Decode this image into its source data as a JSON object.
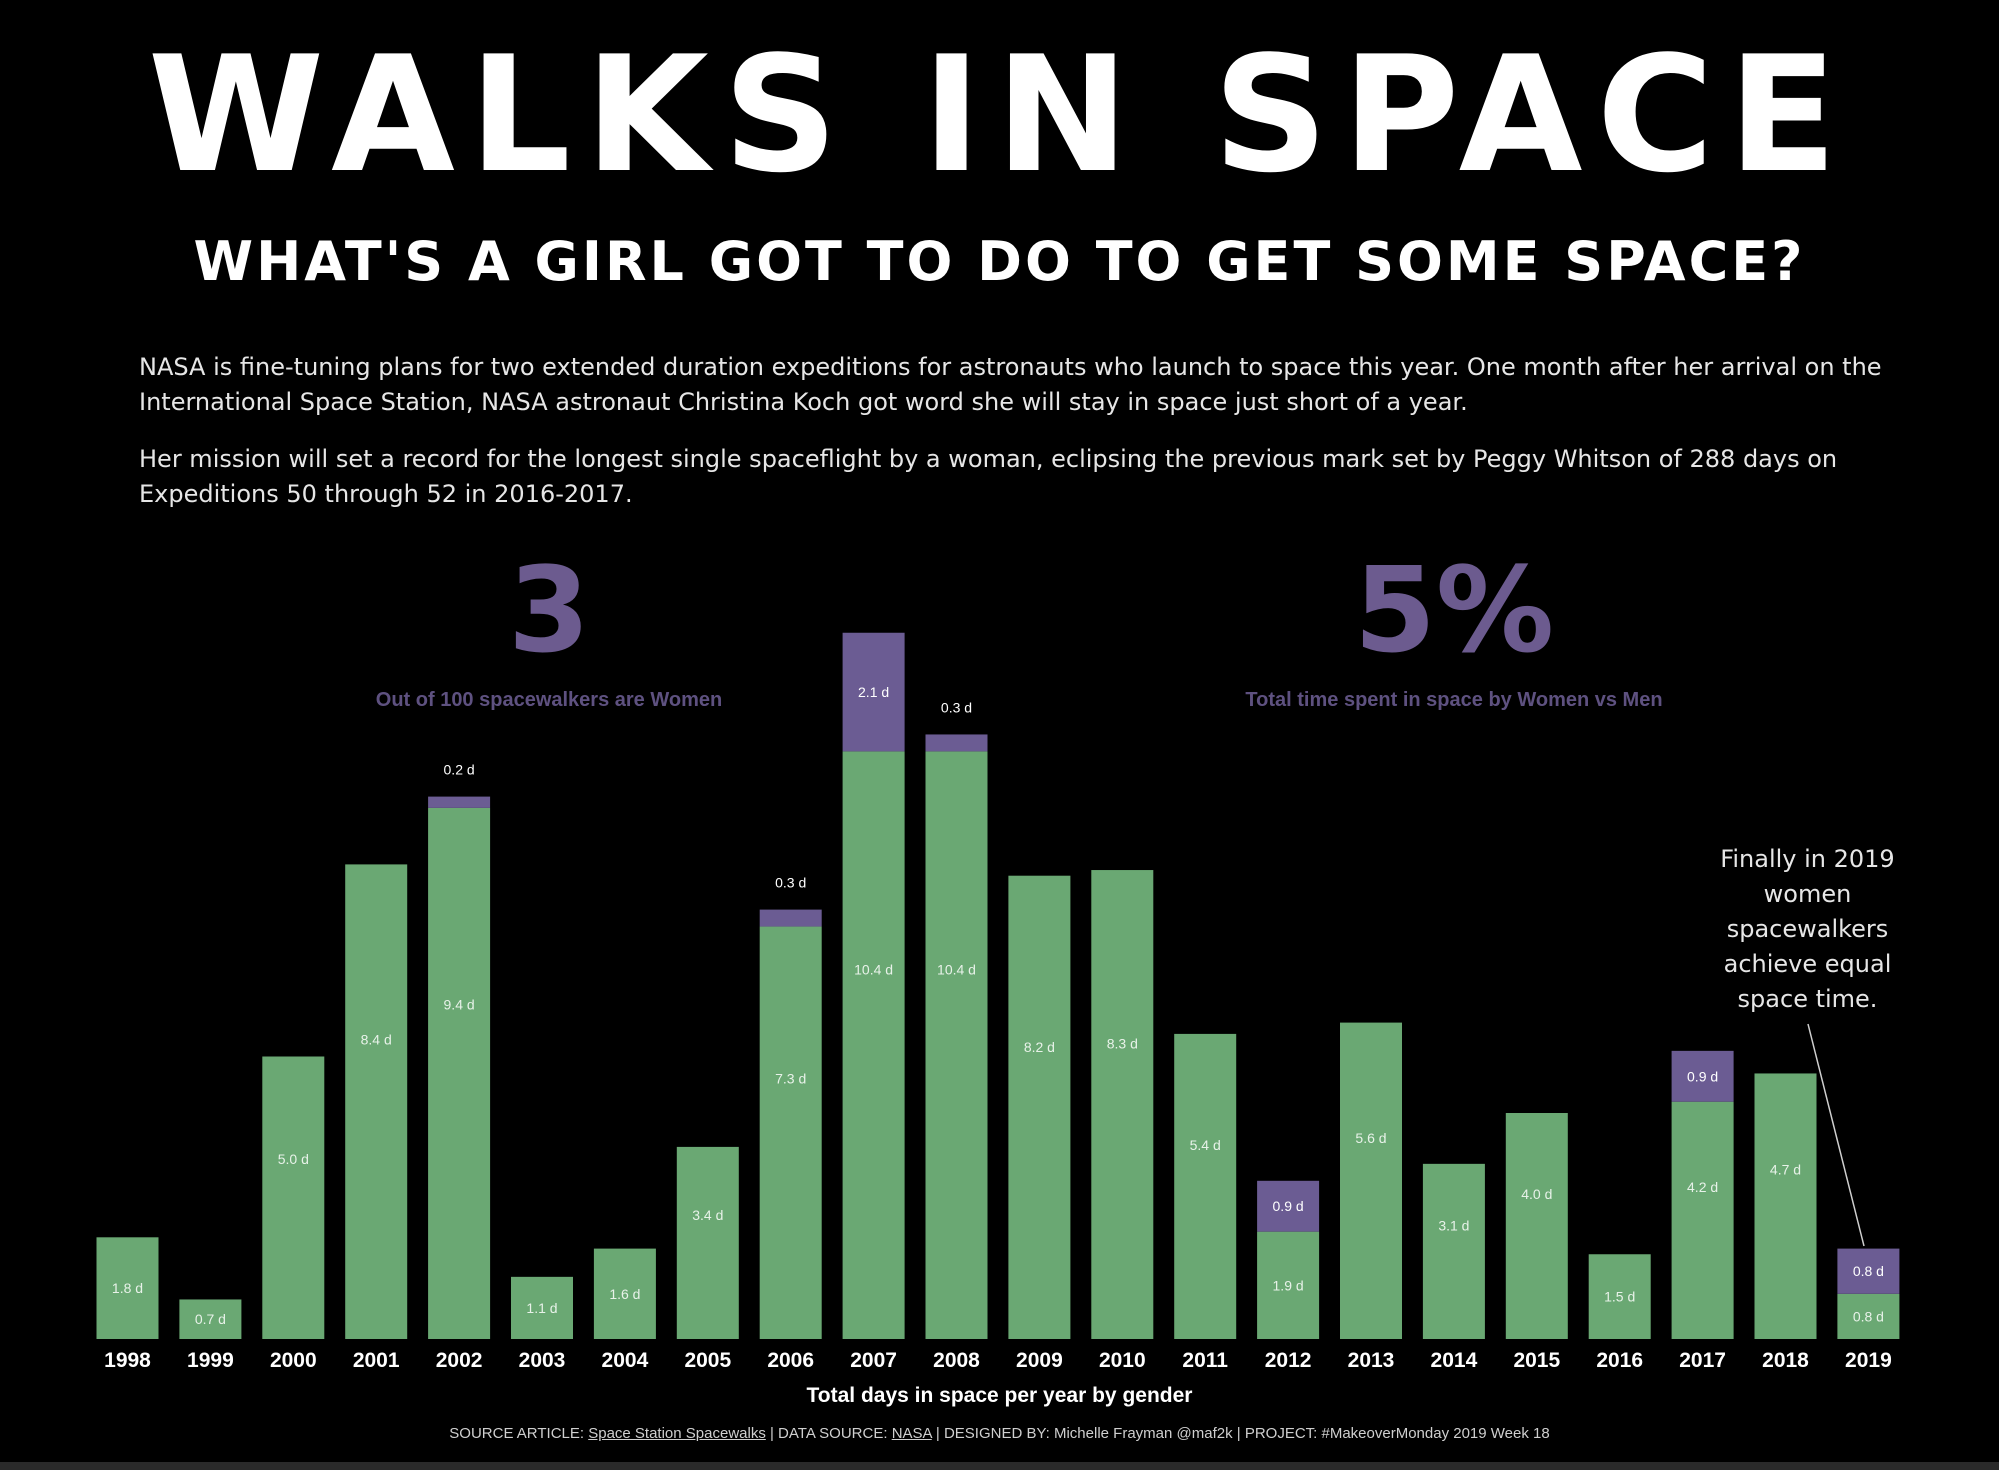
{
  "header": {
    "title": "WALKS IN SPACE",
    "subtitle": "WHAT'S A GIRL GOT TO DO TO GET SOME SPACE?"
  },
  "intro": {
    "paragraph_1": "NASA is fine-tuning plans for two extended duration expeditions for astronauts who launch to space this year. One month after her arrival on the International Space Station, NASA astronaut Christina Koch got word she will stay in space just short of a year.",
    "paragraph_2": "Her mission will set a record for the longest single spaceflight by a woman, eclipsing the previous mark set by Peggy Whitson of 288 days on Expeditions 50 through 52 in 2016-2017."
  },
  "kpis": [
    {
      "value": "3",
      "label": "Out of 100 spacewalkers are Women"
    },
    {
      "value": "5%",
      "label": "Total time spent in space by Women vs Men"
    }
  ],
  "annotation": {
    "text": "Finally in 2019 women spacewalkers achieve equal space time."
  },
  "footer": {
    "source_article_label": "SOURCE ARTICLE: ",
    "source_article_link": "Space Station Spacewalks",
    "data_source_label": " | DATA SOURCE: ",
    "data_source_link": "NASA",
    "rest": " | DESIGNED BY: Michelle Frayman @maf2k | PROJECT: #MakeoverMonday 2019 Week 18"
  },
  "colors": {
    "men": "#6aa873",
    "women": "#6b5c93",
    "kpi": "#6c5b8f",
    "background": "#000000"
  },
  "chart_data": {
    "type": "bar",
    "stacked": true,
    "xlabel": "Total days in space per year by gender",
    "ylabel": "",
    "categories": [
      "1998",
      "1999",
      "2000",
      "2001",
      "2002",
      "2003",
      "2004",
      "2005",
      "2006",
      "2007",
      "2008",
      "2009",
      "2010",
      "2011",
      "2012",
      "2013",
      "2014",
      "2015",
      "2016",
      "2017",
      "2018",
      "2019"
    ],
    "series": [
      {
        "name": "Men",
        "values": [
          1.8,
          0.7,
          5.0,
          8.4,
          9.4,
          1.1,
          1.6,
          3.4,
          7.3,
          10.4,
          10.4,
          8.2,
          8.3,
          5.4,
          1.9,
          5.6,
          3.1,
          4.0,
          1.5,
          4.2,
          4.7,
          0.8
        ],
        "labels": [
          "1.8 d",
          "0.7 d",
          "5.0 d",
          "8.4 d",
          "9.4 d",
          "1.1 d",
          "1.6 d",
          "3.4 d",
          "7.3 d",
          "10.4 d",
          "10.4 d",
          "8.2 d",
          "8.3 d",
          "5.4 d",
          "1.9 d",
          "5.6 d",
          "3.1 d",
          "4.0 d",
          "1.5 d",
          "4.2 d",
          "4.7 d",
          "0.8 d"
        ]
      },
      {
        "name": "Women",
        "values": [
          0,
          0,
          0,
          0,
          0.2,
          0,
          0,
          0,
          0.3,
          2.1,
          0.3,
          0,
          0,
          0,
          0.9,
          0,
          0,
          0,
          0,
          0.9,
          0,
          0.8
        ],
        "labels": [
          "",
          "",
          "",
          "",
          "0.2 d",
          "",
          "",
          "",
          "0.3 d",
          "2.1 d",
          "0.3 d",
          "",
          "",
          "",
          "0.9 d",
          "",
          "",
          "",
          "",
          "0.9 d",
          "",
          "0.8 d"
        ]
      }
    ],
    "ylim": [
      0,
      12.5
    ],
    "grid": false,
    "legend": "none"
  }
}
